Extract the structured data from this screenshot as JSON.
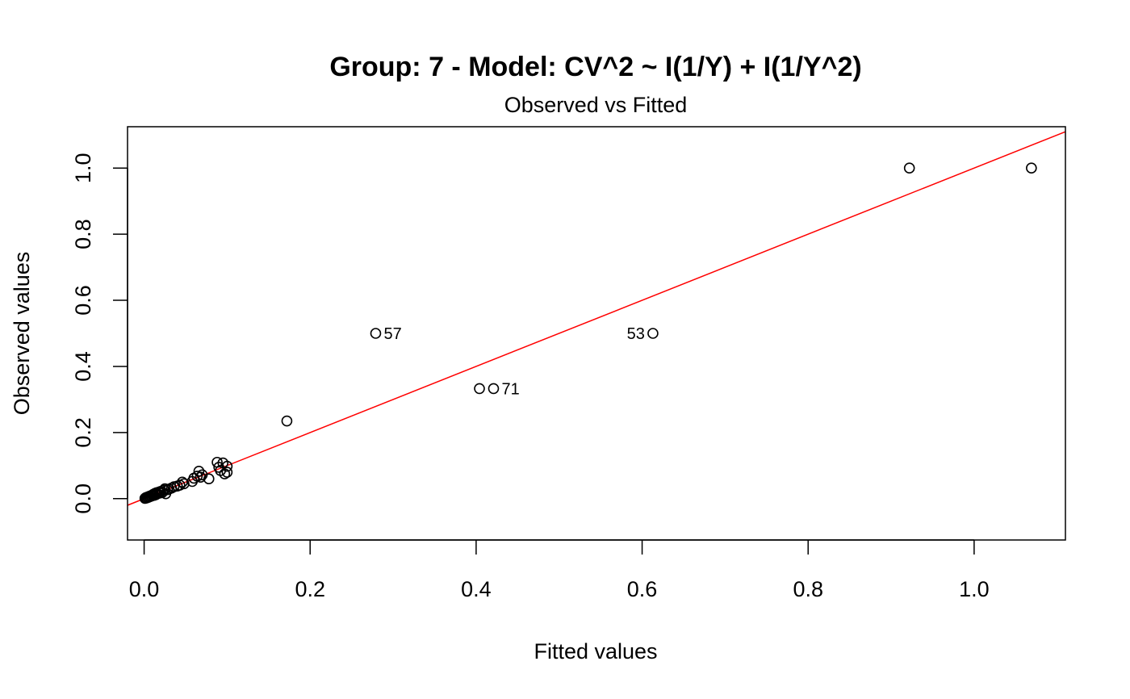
{
  "chart_data": {
    "type": "scatter",
    "title": "Group: 7 - Model: CV^2 ~ I(1/Y) + I(1/Y^2)",
    "subtitle": "Observed vs Fitted",
    "xlabel": "Fitted values",
    "ylabel": "Observed values",
    "xlim": [
      -0.02,
      1.11
    ],
    "ylim": [
      -0.125,
      1.125
    ],
    "xticks": [
      0.0,
      0.2,
      0.4,
      0.6,
      0.8,
      1.0
    ],
    "xtick_labels": [
      "0.0",
      "0.2",
      "0.4",
      "0.6",
      "0.8",
      "1.0"
    ],
    "yticks": [
      0.0,
      0.2,
      0.4,
      0.6,
      0.8,
      1.0
    ],
    "ytick_labels": [
      "0.0",
      "0.2",
      "0.4",
      "0.6",
      "0.8",
      "1.0"
    ],
    "grid": false,
    "points": [
      {
        "x": 0.001,
        "y": 0.001
      },
      {
        "x": 0.002,
        "y": 0.003
      },
      {
        "x": 0.003,
        "y": 0.002
      },
      {
        "x": 0.004,
        "y": 0.005
      },
      {
        "x": 0.005,
        "y": 0.004
      },
      {
        "x": 0.006,
        "y": 0.007
      },
      {
        "x": 0.007,
        "y": 0.006
      },
      {
        "x": 0.008,
        "y": 0.009
      },
      {
        "x": 0.009,
        "y": 0.008
      },
      {
        "x": 0.01,
        "y": 0.011
      },
      {
        "x": 0.011,
        "y": 0.013
      },
      {
        "x": 0.012,
        "y": 0.01
      },
      {
        "x": 0.013,
        "y": 0.016
      },
      {
        "x": 0.014,
        "y": 0.012
      },
      {
        "x": 0.015,
        "y": 0.018
      },
      {
        "x": 0.016,
        "y": 0.015
      },
      {
        "x": 0.018,
        "y": 0.02
      },
      {
        "x": 0.019,
        "y": 0.017
      },
      {
        "x": 0.02,
        "y": 0.022
      },
      {
        "x": 0.022,
        "y": 0.019
      },
      {
        "x": 0.024,
        "y": 0.026
      },
      {
        "x": 0.025,
        "y": 0.03
      },
      {
        "x": 0.026,
        "y": 0.015
      },
      {
        "x": 0.028,
        "y": 0.027
      },
      {
        "x": 0.03,
        "y": 0.029
      },
      {
        "x": 0.033,
        "y": 0.032
      },
      {
        "x": 0.036,
        "y": 0.036
      },
      {
        "x": 0.04,
        "y": 0.038
      },
      {
        "x": 0.043,
        "y": 0.041
      },
      {
        "x": 0.046,
        "y": 0.05
      },
      {
        "x": 0.048,
        "y": 0.045
      },
      {
        "x": 0.058,
        "y": 0.052
      },
      {
        "x": 0.06,
        "y": 0.062
      },
      {
        "x": 0.064,
        "y": 0.068
      },
      {
        "x": 0.066,
        "y": 0.083
      },
      {
        "x": 0.068,
        "y": 0.065
      },
      {
        "x": 0.07,
        "y": 0.072
      },
      {
        "x": 0.078,
        "y": 0.06
      },
      {
        "x": 0.088,
        "y": 0.11
      },
      {
        "x": 0.09,
        "y": 0.095
      },
      {
        "x": 0.092,
        "y": 0.085
      },
      {
        "x": 0.095,
        "y": 0.108
      },
      {
        "x": 0.097,
        "y": 0.075
      },
      {
        "x": 0.1,
        "y": 0.098
      },
      {
        "x": 0.1,
        "y": 0.08
      },
      {
        "x": 0.172,
        "y": 0.235
      },
      {
        "x": 0.279,
        "y": 0.5,
        "label": "57",
        "label_side": "right"
      },
      {
        "x": 0.404,
        "y": 0.333
      },
      {
        "x": 0.421,
        "y": 0.333,
        "label": "71",
        "label_side": "right"
      },
      {
        "x": 0.613,
        "y": 0.5,
        "label": "53",
        "label_side": "left"
      },
      {
        "x": 0.922,
        "y": 1.0
      },
      {
        "x": 1.069,
        "y": 1.0
      }
    ],
    "reference_line": {
      "type": "abline",
      "intercept": 0.0,
      "slope": 1.0,
      "color": "#ff0000"
    },
    "point_color": "#000000"
  }
}
